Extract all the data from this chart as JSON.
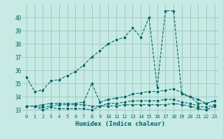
{
  "xlabel": "Humidex (Indice chaleur)",
  "background_color": "#c8eae5",
  "grid_color": "#a0ccc6",
  "line_color": "#006666",
  "x": [
    0,
    1,
    2,
    3,
    4,
    5,
    6,
    7,
    8,
    9,
    10,
    11,
    12,
    13,
    14,
    15,
    16,
    17,
    18,
    19,
    20,
    21,
    22,
    23
  ],
  "y_main": [
    35.5,
    34.4,
    34.5,
    35.2,
    35.3,
    35.6,
    35.9,
    36.4,
    37.0,
    37.5,
    38.0,
    38.3,
    38.5,
    39.2,
    38.5,
    40.0,
    34.7,
    40.5,
    40.5,
    34.2,
    34.0,
    33.5,
    33.5,
    33.7
  ],
  "y_hi": [
    33.3,
    33.3,
    33.4,
    33.5,
    33.5,
    33.5,
    33.5,
    33.6,
    35.0,
    33.6,
    33.8,
    33.9,
    34.0,
    34.2,
    34.3,
    34.4,
    34.4,
    34.5,
    34.6,
    34.3,
    34.0,
    33.8,
    33.5,
    33.7
  ],
  "y_mid": [
    33.3,
    33.3,
    33.2,
    33.3,
    33.4,
    33.4,
    33.4,
    33.4,
    33.3,
    33.3,
    33.5,
    33.5,
    33.6,
    33.7,
    33.7,
    33.7,
    33.7,
    33.8,
    33.8,
    33.6,
    33.5,
    33.3,
    33.2,
    33.4
  ],
  "y_low": [
    33.3,
    33.3,
    33.0,
    33.2,
    33.1,
    33.1,
    33.1,
    33.1,
    33.0,
    33.3,
    33.3,
    33.3,
    33.4,
    33.4,
    33.4,
    33.4,
    33.4,
    33.4,
    33.5,
    33.4,
    33.3,
    33.1,
    33.0,
    33.3
  ],
  "ylim": [
    32.7,
    41.0
  ],
  "yticks": [
    33,
    34,
    35,
    36,
    37,
    38,
    39,
    40
  ],
  "xticks": [
    0,
    1,
    2,
    3,
    4,
    5,
    6,
    7,
    8,
    9,
    10,
    11,
    12,
    13,
    14,
    15,
    16,
    17,
    18,
    19,
    20,
    21,
    22,
    23
  ]
}
